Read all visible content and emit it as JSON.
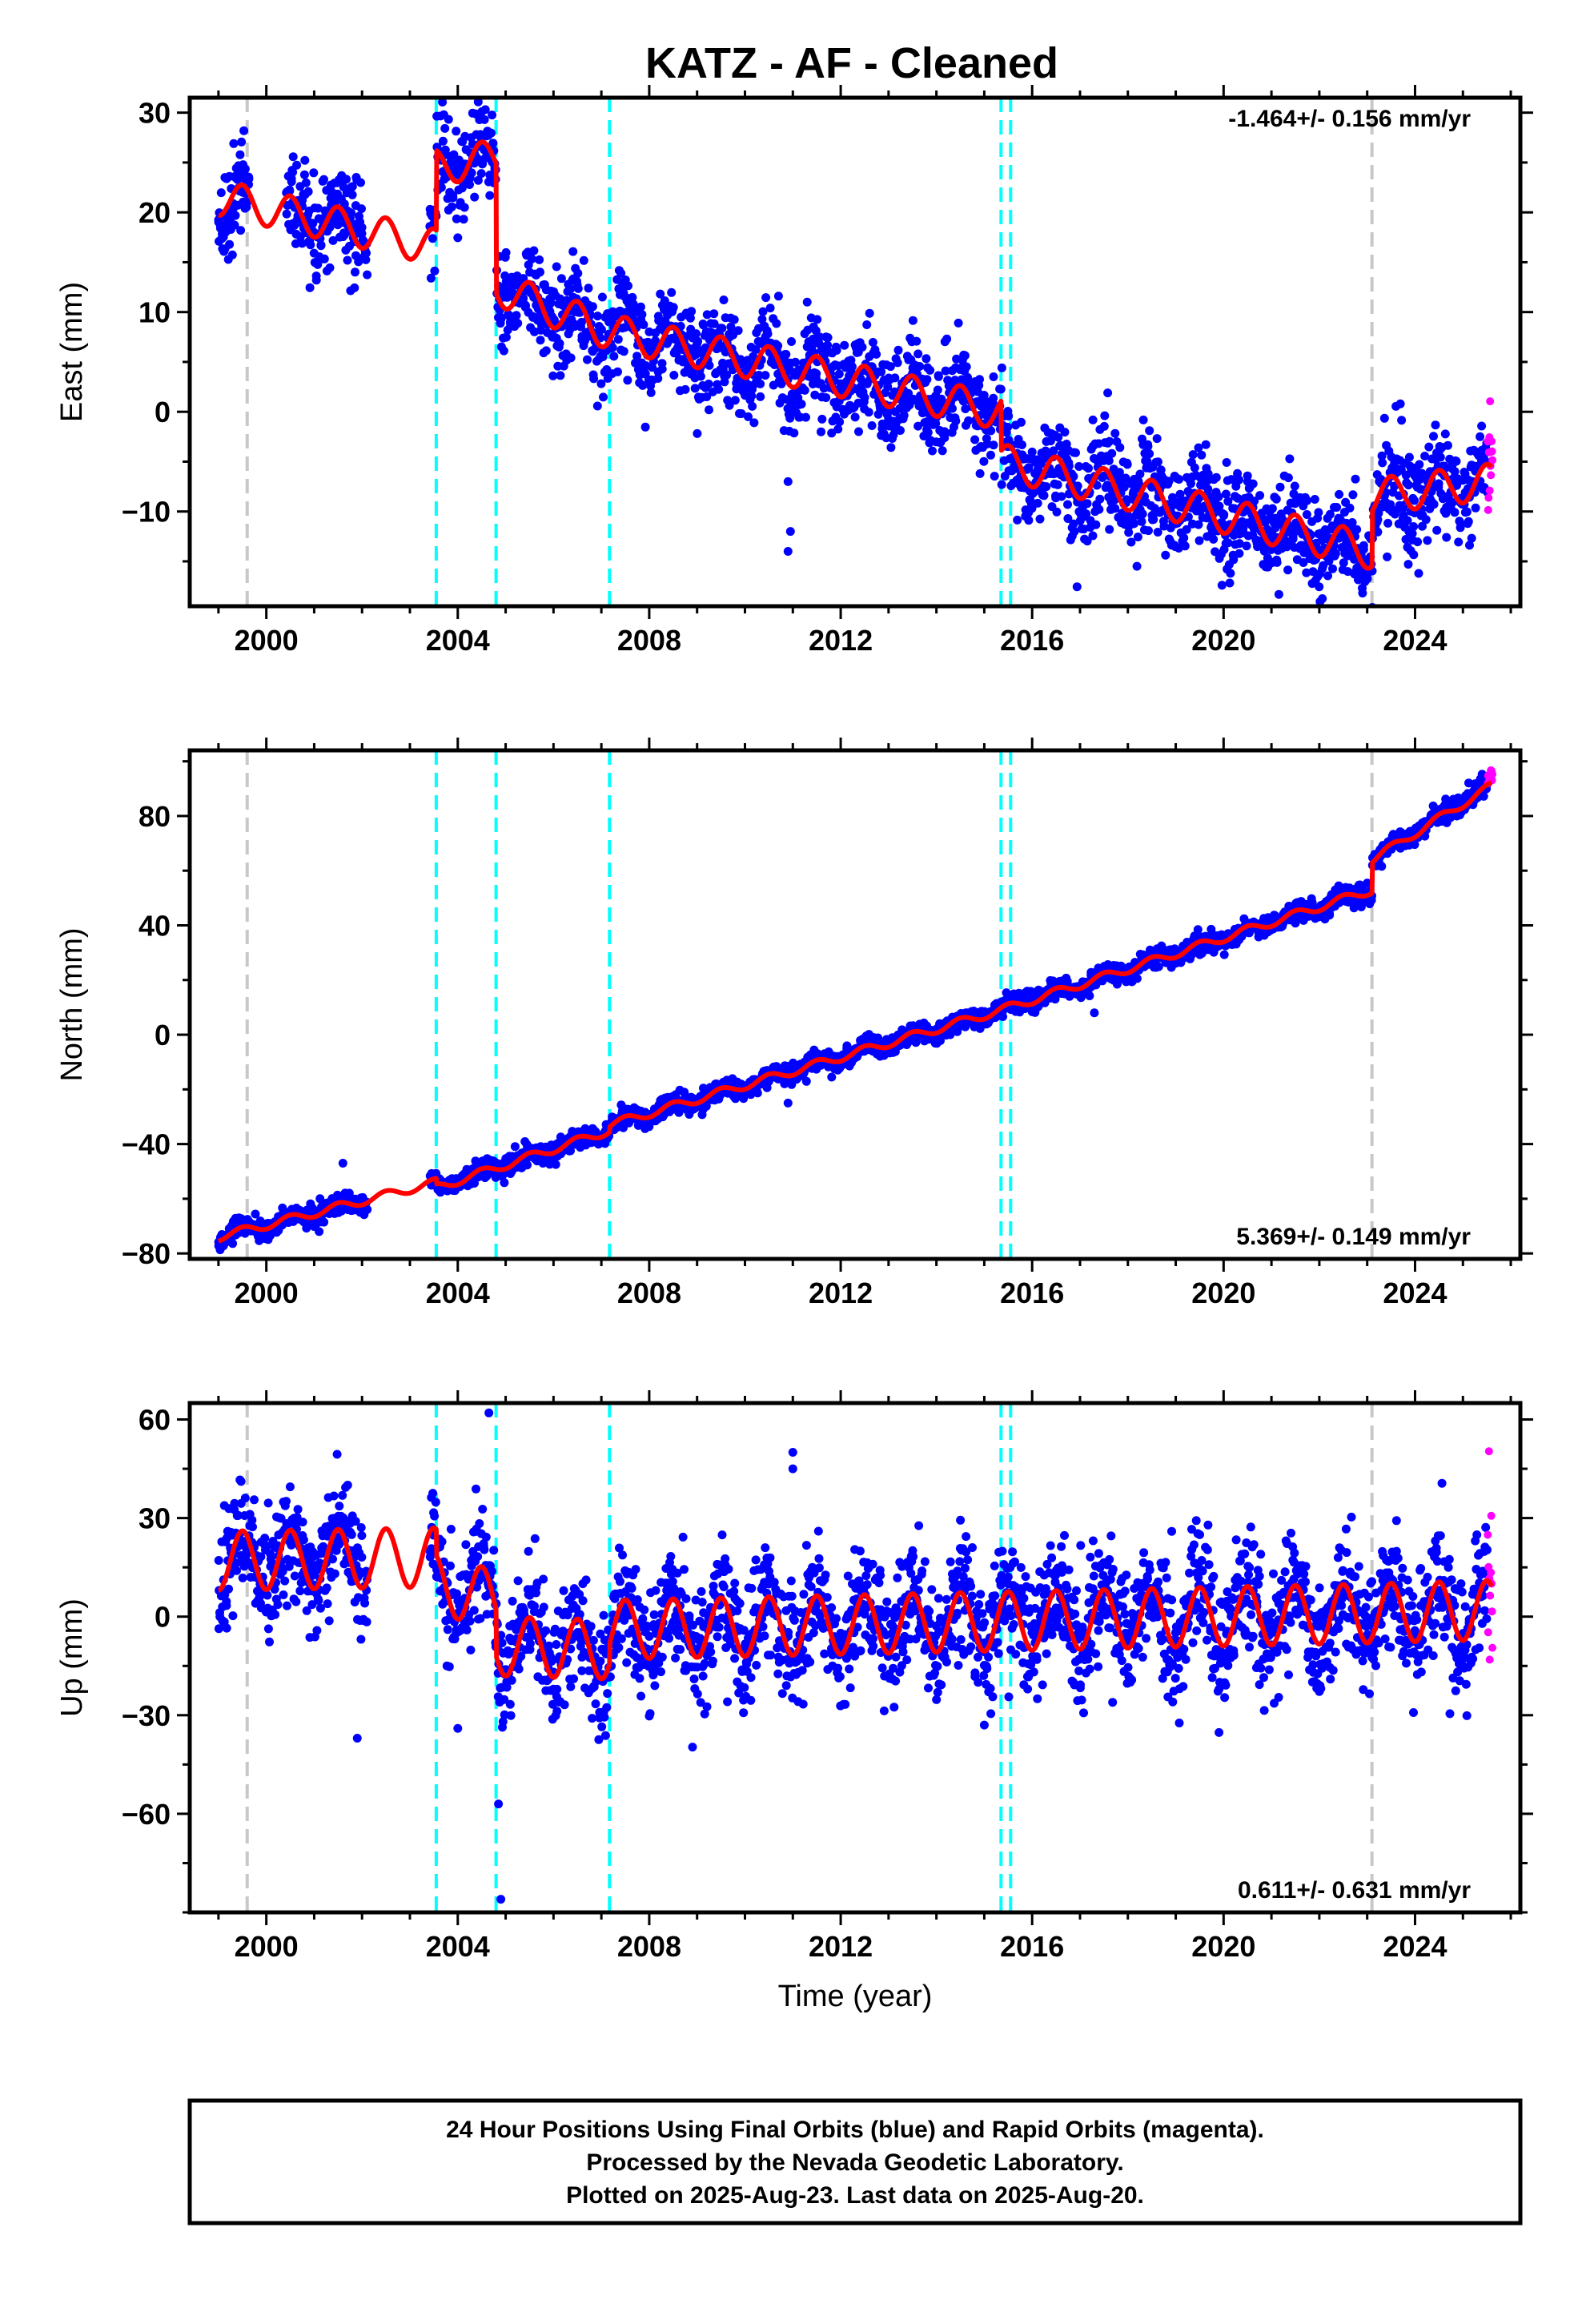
{
  "chart_data": [
    {
      "type": "scatter",
      "title": "KATZ  - AF - Cleaned",
      "ylabel": "East (mm)",
      "xlabel": "",
      "xlim": [
        1998.4,
        2026.2
      ],
      "ylim": [
        -19.5,
        31.5
      ],
      "xticks": [
        2000,
        2004,
        2008,
        2012,
        2016,
        2020,
        2024
      ],
      "yticks": [
        -10,
        0,
        10,
        20,
        30
      ],
      "rate": "-1.464+/- 0.156 mm/yr",
      "grid": false,
      "colors": {
        "final": "#0000ff",
        "rapid": "#ff00ff",
        "model": "#ff0000"
      },
      "steps": [
        {
          "x": 1999.6,
          "color": "#c8c8c8"
        },
        {
          "x": 2003.55,
          "color": "#00ffff"
        },
        {
          "x": 2004.8,
          "color": "#00ffff"
        },
        {
          "x": 2007.17,
          "color": "#00ffff"
        },
        {
          "x": 2015.35,
          "color": "#00ffff"
        },
        {
          "x": 2015.55,
          "color": "#00ffff"
        },
        {
          "x": 2023.1,
          "color": "#c8c8c8"
        }
      ],
      "model": {
        "knots": [
          [
            1999.0,
            21.5
          ],
          [
            2003.55,
            16.5
          ],
          [
            2003.55,
            24.5
          ],
          [
            2004.8,
            25.5
          ],
          [
            2004.8,
            12.5
          ],
          [
            2007.17,
            8.0
          ],
          [
            2015.35,
            0.0
          ],
          [
            2015.35,
            -5.0
          ],
          [
            2023.1,
            -14.0
          ],
          [
            2023.1,
            -8.5
          ],
          [
            2025.6,
            -7.0
          ]
        ],
        "amplitude": 1.8
      },
      "final": {
        "knots": [
          [
            1999.0,
            21.5
          ],
          [
            2003.55,
            16.5
          ],
          [
            2003.55,
            24.5
          ],
          [
            2004.8,
            25.5
          ],
          [
            2004.8,
            12.5
          ],
          [
            2007.17,
            8.0
          ],
          [
            2015.35,
            0.0
          ],
          [
            2015.35,
            -5.0
          ],
          [
            2023.1,
            -14.0
          ],
          [
            2023.1,
            -8.5
          ],
          [
            2025.5,
            -7.0
          ]
        ],
        "gaps": [
          [
            1999.65,
            2000.4
          ],
          [
            2002.1,
            2003.4
          ]
        ],
        "scatter": 2.4
      },
      "rapid": {
        "x": [
          2025.5,
          2025.6
        ],
        "y": [
          -7.0,
          -7.0
        ],
        "scatter": 3.0
      },
      "outliers": [
        [
          2010.9,
          -14.0
        ],
        [
          2010.9,
          -7.0
        ],
        [
          2010.95,
          -12.0
        ],
        [
          2013.8,
          -1.0
        ],
        [
          2011.3,
          11.0
        ]
      ]
    },
    {
      "type": "scatter",
      "title": "",
      "ylabel": "North (mm)",
      "xlabel": "",
      "xlim": [
        1998.4,
        2026.2
      ],
      "ylim": [
        -82.0,
        104.0
      ],
      "xticks": [
        2000,
        2004,
        2008,
        2012,
        2016,
        2020,
        2024
      ],
      "yticks": [
        -80,
        -40,
        0,
        40,
        80
      ],
      "rate": "5.369+/- 0.149 mm/yr",
      "grid": false,
      "colors": {
        "final": "#0000ff",
        "rapid": "#ff00ff",
        "model": "#ff0000"
      },
      "steps": [
        {
          "x": 1999.6,
          "color": "#c8c8c8"
        },
        {
          "x": 2003.55,
          "color": "#00ffff"
        },
        {
          "x": 2004.8,
          "color": "#00ffff"
        },
        {
          "x": 2007.17,
          "color": "#00ffff"
        },
        {
          "x": 2015.35,
          "color": "#00ffff"
        },
        {
          "x": 2015.55,
          "color": "#00ffff"
        },
        {
          "x": 2023.1,
          "color": "#c8c8c8"
        }
      ],
      "model": {
        "knots": [
          [
            1999.0,
            -74.0
          ],
          [
            2003.55,
            -54.0
          ],
          [
            2003.55,
            -56.0
          ],
          [
            2007.17,
            -35.0
          ],
          [
            2007.17,
            -33.0
          ],
          [
            2015.35,
            9.0
          ],
          [
            2023.1,
            53.0
          ],
          [
            2023.1,
            64.0
          ],
          [
            2025.6,
            91.0
          ]
        ],
        "amplitude": 1.5
      },
      "final": {
        "knots": [
          [
            1999.0,
            -74.0
          ],
          [
            2003.55,
            -54.0
          ],
          [
            2003.55,
            -56.0
          ],
          [
            2007.17,
            -35.0
          ],
          [
            2007.17,
            -33.0
          ],
          [
            2015.35,
            9.0
          ],
          [
            2023.1,
            53.0
          ],
          [
            2023.1,
            64.0
          ],
          [
            2025.5,
            91.0
          ]
        ],
        "gaps": [
          [
            2002.1,
            2003.4
          ]
        ],
        "scatter": 1.8
      },
      "rapid": {
        "x": [
          2025.5,
          2025.6
        ],
        "y": [
          93.0,
          96.0
        ],
        "scatter": 2.0
      },
      "outliers": [
        [
          2001.6,
          -47.0
        ],
        [
          2010.9,
          -25.0
        ],
        [
          2017.3,
          8.0
        ]
      ]
    },
    {
      "type": "scatter",
      "title": "",
      "ylabel": "Up (mm)",
      "xlabel": "Time (year)",
      "xlim": [
        1998.4,
        2026.2
      ],
      "ylim": [
        -90.0,
        65.0
      ],
      "xticks": [
        2000,
        2004,
        2008,
        2012,
        2016,
        2020,
        2024
      ],
      "yticks": [
        -60,
        -30,
        0,
        30,
        60
      ],
      "rate": "0.611+/- 0.631 mm/yr",
      "grid": false,
      "colors": {
        "final": "#0000ff",
        "rapid": "#ff00ff",
        "model": "#ff0000"
      },
      "steps": [
        {
          "x": 1999.6,
          "color": "#c8c8c8"
        },
        {
          "x": 2003.55,
          "color": "#00ffff"
        },
        {
          "x": 2004.8,
          "color": "#00ffff"
        },
        {
          "x": 2007.17,
          "color": "#00ffff"
        },
        {
          "x": 2015.35,
          "color": "#00ffff"
        },
        {
          "x": 2015.55,
          "color": "#00ffff"
        },
        {
          "x": 2023.1,
          "color": "#c8c8c8"
        }
      ],
      "model": {
        "knots": [
          [
            1999.0,
            17.0
          ],
          [
            2003.55,
            18.0
          ],
          [
            2003.55,
            10.0
          ],
          [
            2004.8,
            5.0
          ],
          [
            2004.8,
            -9.0
          ],
          [
            2007.17,
            -10.0
          ],
          [
            2007.17,
            -4.0
          ],
          [
            2023.1,
            1.0
          ],
          [
            2025.6,
            2.0
          ]
        ],
        "amplitude": 9.0
      },
      "final": {
        "knots": [
          [
            1999.0,
            17.0
          ],
          [
            2003.55,
            18.0
          ],
          [
            2003.55,
            10.0
          ],
          [
            2004.8,
            5.0
          ],
          [
            2004.8,
            -9.0
          ],
          [
            2007.17,
            -10.0
          ],
          [
            2007.17,
            -4.0
          ],
          [
            2023.1,
            1.0
          ],
          [
            2025.5,
            2.0
          ]
        ],
        "gaps": [
          [
            2002.1,
            2003.4
          ]
        ],
        "scatter": 9.0
      },
      "rapid": {
        "x": [
          2025.5,
          2025.6
        ],
        "y": [
          8.0,
          10.0
        ],
        "scatter": 15.0
      },
      "outliers": [
        [
          2004.65,
          62.0
        ],
        [
          2004.85,
          -57.0
        ],
        [
          2004.9,
          -86.0
        ],
        [
          2001.9,
          -37.0
        ],
        [
          2011.0,
          50.0
        ],
        [
          2011.0,
          45.0
        ],
        [
          2015.0,
          -33.0
        ],
        [
          2004.0,
          -34.0
        ]
      ]
    }
  ],
  "footer": {
    "lines": [
      "24 Hour Positions Using Final Orbits (blue) and Rapid Orbits (magenta).",
      "Processed by the Nevada Geodetic Laboratory.",
      "Plotted on 2025-Aug-23. Last data on 2025-Aug-20."
    ]
  }
}
